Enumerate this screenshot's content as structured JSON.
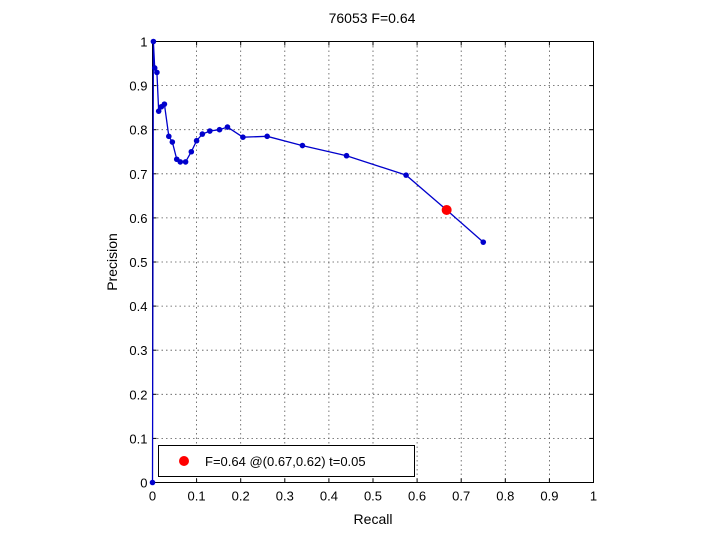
{
  "chart_data": {
    "type": "line",
    "title": "76053 F=0.64",
    "xlabel": "Recall",
    "ylabel": "Precision",
    "xlim": [
      0,
      1
    ],
    "ylim": [
      0,
      1
    ],
    "xticks": [
      "0",
      "0.1",
      "0.2",
      "0.3",
      "0.4",
      "0.5",
      "0.6",
      "0.7",
      "0.8",
      "0.9",
      "1"
    ],
    "yticks": [
      "0",
      "0.1",
      "0.2",
      "0.3",
      "0.4",
      "0.5",
      "0.6",
      "0.7",
      "0.8",
      "0.9",
      "1"
    ],
    "grid": true,
    "legend_position": "bottom-left",
    "series": [
      {
        "color": "#0000cc",
        "x": [
          0.0,
          0.002,
          0.005,
          0.01,
          0.014,
          0.02,
          0.027,
          0.037,
          0.045,
          0.055,
          0.063,
          0.075,
          0.088,
          0.1,
          0.113,
          0.13,
          0.152,
          0.17,
          0.205,
          0.26,
          0.34,
          0.44,
          0.575,
          0.667,
          0.75
        ],
        "y": [
          0.0,
          1.0,
          0.94,
          0.93,
          0.842,
          0.852,
          0.858,
          0.785,
          0.772,
          0.733,
          0.727,
          0.727,
          0.75,
          0.775,
          0.79,
          0.797,
          0.8,
          0.806,
          0.783,
          0.785,
          0.764,
          0.741,
          0.697,
          0.618,
          0.545
        ]
      }
    ],
    "highlight": {
      "x": 0.667,
      "y": 0.618,
      "color": "#ff0000"
    },
    "legend": {
      "label": "F=0.64 @(0.67,0.62) t=0.05"
    }
  }
}
